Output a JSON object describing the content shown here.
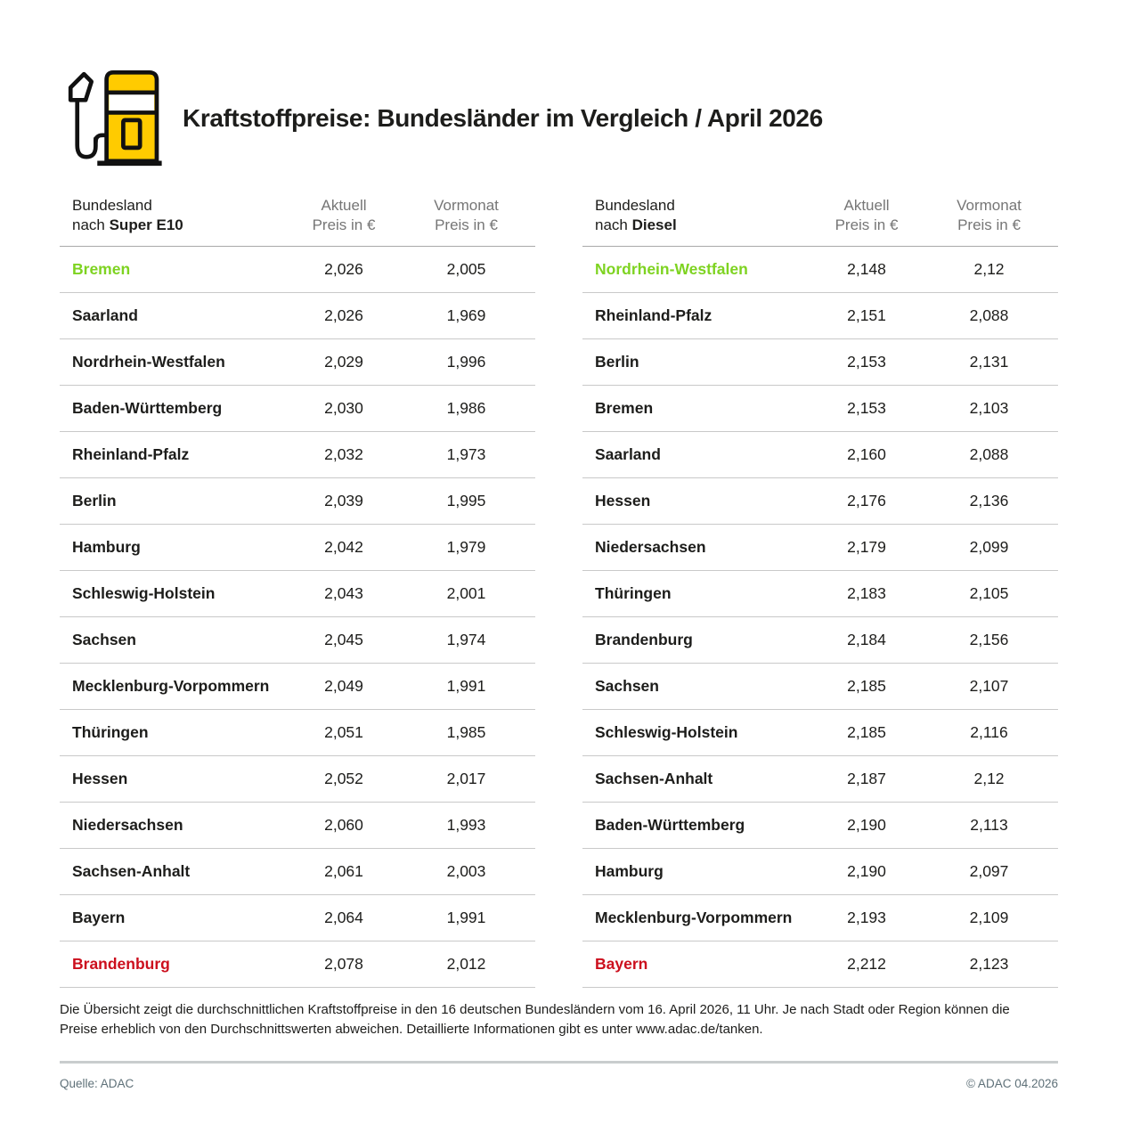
{
  "header": {
    "title": "Kraftstoffpreise: Bundesländer im Vergleich / April 2026",
    "icon": "fuel-pump-icon"
  },
  "colors": {
    "best_green": "#7ed321",
    "worst_red": "#cc0f1d",
    "pump_yellow": "#ffcb00",
    "text_dark": "#1d1d1b",
    "header_gray": "#767676",
    "divider_gray": "#c9c9c9",
    "footer_gray": "#5e7078"
  },
  "tables": [
    {
      "id": "super-e10",
      "header": {
        "col1_line1": "Bundesland",
        "col1_prefix": "nach ",
        "col1_bold": "Super E10",
        "col2_line1": "Aktuell",
        "col2_line2": "Preis in €",
        "col3_line1": "Vormonat",
        "col3_line2": "Preis in €"
      },
      "rows": [
        {
          "state": "Bremen",
          "aktuell": "2,026",
          "vormonat": "2,005",
          "highlight": "green"
        },
        {
          "state": "Saarland",
          "aktuell": "2,026",
          "vormonat": "1,969",
          "highlight": null
        },
        {
          "state": "Nordrhein-Westfalen",
          "aktuell": "2,029",
          "vormonat": "1,996",
          "highlight": null
        },
        {
          "state": "Baden-Württemberg",
          "aktuell": "2,030",
          "vormonat": "1,986",
          "highlight": null
        },
        {
          "state": "Rheinland-Pfalz",
          "aktuell": "2,032",
          "vormonat": "1,973",
          "highlight": null
        },
        {
          "state": "Berlin",
          "aktuell": "2,039",
          "vormonat": "1,995",
          "highlight": null
        },
        {
          "state": "Hamburg",
          "aktuell": "2,042",
          "vormonat": "1,979",
          "highlight": null
        },
        {
          "state": "Schleswig-Holstein",
          "aktuell": "2,043",
          "vormonat": "2,001",
          "highlight": null
        },
        {
          "state": "Sachsen",
          "aktuell": "2,045",
          "vormonat": "1,974",
          "highlight": null
        },
        {
          "state": "Mecklenburg-Vorpommern",
          "aktuell": "2,049",
          "vormonat": "1,991",
          "highlight": null
        },
        {
          "state": "Thüringen",
          "aktuell": "2,051",
          "vormonat": "1,985",
          "highlight": null
        },
        {
          "state": "Hessen",
          "aktuell": "2,052",
          "vormonat": "2,017",
          "highlight": null
        },
        {
          "state": "Niedersachsen",
          "aktuell": "2,060",
          "vormonat": "1,993",
          "highlight": null
        },
        {
          "state": "Sachsen-Anhalt",
          "aktuell": "2,061",
          "vormonat": "2,003",
          "highlight": null
        },
        {
          "state": "Bayern",
          "aktuell": "2,064",
          "vormonat": "1,991",
          "highlight": null
        },
        {
          "state": "Brandenburg",
          "aktuell": "2,078",
          "vormonat": "2,012",
          "highlight": "red"
        }
      ]
    },
    {
      "id": "diesel",
      "header": {
        "col1_line1": "Bundesland",
        "col1_prefix": "nach ",
        "col1_bold": "Diesel",
        "col2_line1": "Aktuell",
        "col2_line2": "Preis in €",
        "col3_line1": "Vormonat",
        "col3_line2": "Preis in €"
      },
      "rows": [
        {
          "state": "Nordrhein-Westfalen",
          "aktuell": "2,148",
          "vormonat": "2,12",
          "highlight": "green"
        },
        {
          "state": "Rheinland-Pfalz",
          "aktuell": "2,151",
          "vormonat": "2,088",
          "highlight": null
        },
        {
          "state": "Berlin",
          "aktuell": "2,153",
          "vormonat": "2,131",
          "highlight": null
        },
        {
          "state": "Bremen",
          "aktuell": "2,153",
          "vormonat": "2,103",
          "highlight": null
        },
        {
          "state": "Saarland",
          "aktuell": "2,160",
          "vormonat": "2,088",
          "highlight": null
        },
        {
          "state": "Hessen",
          "aktuell": "2,176",
          "vormonat": "2,136",
          "highlight": null
        },
        {
          "state": "Niedersachsen",
          "aktuell": "2,179",
          "vormonat": "2,099",
          "highlight": null
        },
        {
          "state": "Thüringen",
          "aktuell": "2,183",
          "vormonat": "2,105",
          "highlight": null
        },
        {
          "state": "Brandenburg",
          "aktuell": "2,184",
          "vormonat": "2,156",
          "highlight": null
        },
        {
          "state": "Sachsen",
          "aktuell": "2,185",
          "vormonat": "2,107",
          "highlight": null
        },
        {
          "state": "Schleswig-Holstein",
          "aktuell": "2,185",
          "vormonat": "2,116",
          "highlight": null
        },
        {
          "state": "Sachsen-Anhalt",
          "aktuell": "2,187",
          "vormonat": "2,12",
          "highlight": null
        },
        {
          "state": "Baden-Württemberg",
          "aktuell": "2,190",
          "vormonat": "2,113",
          "highlight": null
        },
        {
          "state": "Hamburg",
          "aktuell": "2,190",
          "vormonat": "2,097",
          "highlight": null
        },
        {
          "state": "Mecklenburg-Vorpommern",
          "aktuell": "2,193",
          "vormonat": "2,109",
          "highlight": null
        },
        {
          "state": "Bayern",
          "aktuell": "2,212",
          "vormonat": "2,123",
          "highlight": "red"
        }
      ]
    }
  ],
  "footnote": {
    "lines": [
      "Die Übersicht zeigt die durchschnittlichen Kraftstoffpreise in den 16 deutschen Bundesländern vom 16. April 2026, 11 Uhr. Je nach Stadt oder Region können die",
      "Preise erheblich von den Durchschnittswerten abweichen. Detaillierte Informationen gibt es unter www.adac.de/tanken."
    ]
  },
  "footer": {
    "source": "Quelle: ADAC",
    "copyright": "© ADAC 04.2026"
  },
  "chart_data": [
    {
      "type": "table",
      "title": "Bundesland nach Super E10",
      "columns": [
        "Bundesland",
        "Aktuell Preis in €",
        "Vormonat Preis in €"
      ],
      "rows": [
        [
          "Bremen",
          2.026,
          2.005
        ],
        [
          "Saarland",
          2.026,
          1.969
        ],
        [
          "Nordrhein-Westfalen",
          2.029,
          1.996
        ],
        [
          "Baden-Württemberg",
          2.03,
          1.986
        ],
        [
          "Rheinland-Pfalz",
          2.032,
          1.973
        ],
        [
          "Berlin",
          2.039,
          1.995
        ],
        [
          "Hamburg",
          2.042,
          1.979
        ],
        [
          "Schleswig-Holstein",
          2.043,
          2.001
        ],
        [
          "Sachsen",
          2.045,
          1.974
        ],
        [
          "Mecklenburg-Vorpommern",
          2.049,
          1.991
        ],
        [
          "Thüringen",
          2.051,
          1.985
        ],
        [
          "Hessen",
          2.052,
          2.017
        ],
        [
          "Niedersachsen",
          2.06,
          1.993
        ],
        [
          "Sachsen-Anhalt",
          2.061,
          2.003
        ],
        [
          "Bayern",
          2.064,
          1.991
        ],
        [
          "Brandenburg",
          2.078,
          2.012
        ]
      ],
      "notes": "lowest price highlighted green (Bremen), highest highlighted red (Brandenburg)"
    },
    {
      "type": "table",
      "title": "Bundesland nach Diesel",
      "columns": [
        "Bundesland",
        "Aktuell Preis in €",
        "Vormonat Preis in €"
      ],
      "rows": [
        [
          "Nordrhein-Westfalen",
          2.148,
          2.12
        ],
        [
          "Rheinland-Pfalz",
          2.151,
          2.088
        ],
        [
          "Berlin",
          2.153,
          2.131
        ],
        [
          "Bremen",
          2.153,
          2.103
        ],
        [
          "Saarland",
          2.16,
          2.088
        ],
        [
          "Hessen",
          2.176,
          2.136
        ],
        [
          "Niedersachsen",
          2.179,
          2.099
        ],
        [
          "Thüringen",
          2.183,
          2.105
        ],
        [
          "Brandenburg",
          2.184,
          2.156
        ],
        [
          "Sachsen",
          2.185,
          2.107
        ],
        [
          "Schleswig-Holstein",
          2.185,
          2.116
        ],
        [
          "Sachsen-Anhalt",
          2.187,
          2.12
        ],
        [
          "Baden-Württemberg",
          2.19,
          2.113
        ],
        [
          "Hamburg",
          2.19,
          2.097
        ],
        [
          "Mecklenburg-Vorpommern",
          2.193,
          2.109
        ],
        [
          "Bayern",
          2.212,
          2.123
        ]
      ],
      "notes": "lowest price highlighted green (Nordrhein-Westfalen), highest highlighted red (Bayern)"
    }
  ]
}
